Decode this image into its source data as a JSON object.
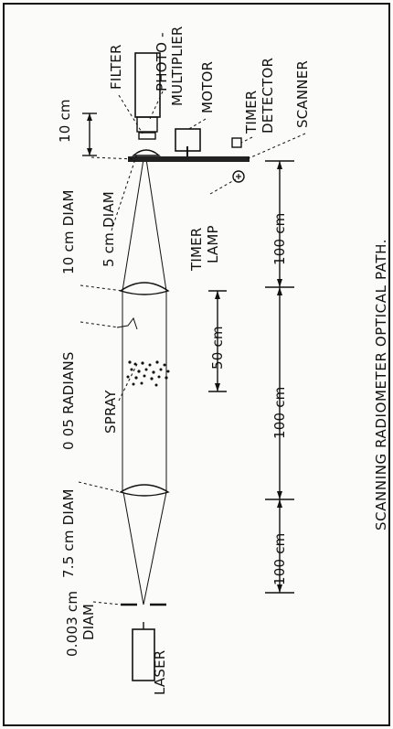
{
  "labels": {
    "filter": "FILTER",
    "photo": "PHOTO -",
    "multiplier": "MULTIPLIER",
    "motor": "MOTOR",
    "timer": "TIMER",
    "detector": "DETECTOR",
    "scanner": "SCANNER",
    "ten_cm": "10 cm",
    "ten_cm_diam": "10 cm DIAM",
    "five_cm_diam": "5 cm DIAM",
    "timer_lamp_1": "TIMER",
    "timer_lamp_2": "LAMP",
    "radians": "0 05 RADIANS",
    "spray": "SPRAY",
    "fifty_cm": "50 cm",
    "hundred_top": "100 cm",
    "hundred_mid": "100 cm",
    "hundred_bot": "100 cm",
    "seven_five_diam": "7.5 cm DIAM",
    "aperture_1": "0.003 cm",
    "aperture_2": "DIAM",
    "laser": "LASER",
    "caption": "SCANNING RADIOMETER OPTICAL PATH."
  }
}
